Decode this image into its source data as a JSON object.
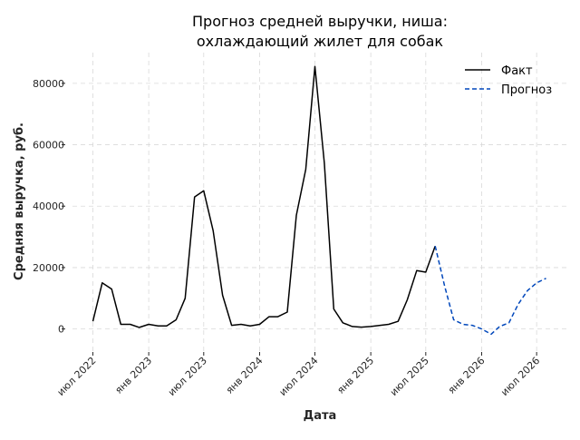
{
  "chart_data": {
    "type": "line",
    "title_lines": [
      "Прогноз средней выручки, ниша:",
      "охлаждающий жилет для собак"
    ],
    "xlabel": "Дата",
    "ylabel": "Средняя выручка, руб.",
    "x_tick_labels": [
      "июл 2022",
      "янв 2023",
      "июл 2023",
      "янв 2024",
      "июл 2024",
      "янв 2025",
      "июл 2025",
      "янв 2026",
      "июл 2026"
    ],
    "y_tick_labels": [
      "0",
      "20000",
      "40000",
      "60000",
      "80000"
    ],
    "ylim": [
      -7500,
      90000
    ],
    "grid": true,
    "legend_position": "top-right",
    "series": [
      {
        "name": "Факт",
        "color": "#000000",
        "style": "solid",
        "points": [
          [
            "2022-07-01",
            2500
          ],
          [
            "2022-08-01",
            15000
          ],
          [
            "2022-09-01",
            13000
          ],
          [
            "2022-10-01",
            1500
          ],
          [
            "2022-11-01",
            1500
          ],
          [
            "2022-12-01",
            500
          ],
          [
            "2023-01-01",
            1500
          ],
          [
            "2023-02-01",
            1000
          ],
          [
            "2023-03-01",
            1000
          ],
          [
            "2023-04-01",
            3000
          ],
          [
            "2023-05-01",
            10000
          ],
          [
            "2023-06-01",
            43000
          ],
          [
            "2023-07-01",
            45000
          ],
          [
            "2023-08-01",
            32000
          ],
          [
            "2023-09-01",
            11000
          ],
          [
            "2023-10-01",
            1200
          ],
          [
            "2023-11-01",
            1500
          ],
          [
            "2023-12-01",
            1000
          ],
          [
            "2024-01-01",
            1500
          ],
          [
            "2024-02-01",
            4000
          ],
          [
            "2024-03-01",
            4000
          ],
          [
            "2024-04-01",
            5500
          ],
          [
            "2024-05-01",
            37000
          ],
          [
            "2024-06-01",
            52000
          ],
          [
            "2024-07-01",
            85500
          ],
          [
            "2024-08-01",
            54000
          ],
          [
            "2024-09-01",
            6500
          ],
          [
            "2024-10-01",
            2000
          ],
          [
            "2024-11-01",
            800
          ],
          [
            "2024-12-01",
            600
          ],
          [
            "2025-01-01",
            800
          ],
          [
            "2025-02-01",
            1200
          ],
          [
            "2025-03-01",
            1500
          ],
          [
            "2025-04-01",
            2500
          ],
          [
            "2025-05-01",
            9500
          ],
          [
            "2025-06-01",
            19000
          ],
          [
            "2025-07-01",
            18500
          ],
          [
            "2025-08-01",
            27000
          ]
        ]
      },
      {
        "name": "Прогноз",
        "color": "#0047bb",
        "style": "dashed",
        "points": [
          [
            "2025-08-01",
            27000
          ],
          [
            "2025-09-01",
            14000
          ],
          [
            "2025-10-01",
            3000
          ],
          [
            "2025-11-01",
            1500
          ],
          [
            "2025-12-01",
            1200
          ],
          [
            "2026-01-01",
            0
          ],
          [
            "2026-02-01",
            -1700
          ],
          [
            "2026-03-01",
            800
          ],
          [
            "2026-04-01",
            2000
          ],
          [
            "2026-05-01",
            8000
          ],
          [
            "2026-06-01",
            12500
          ],
          [
            "2026-07-01",
            15000
          ],
          [
            "2026-08-01",
            16500
          ]
        ]
      }
    ]
  }
}
